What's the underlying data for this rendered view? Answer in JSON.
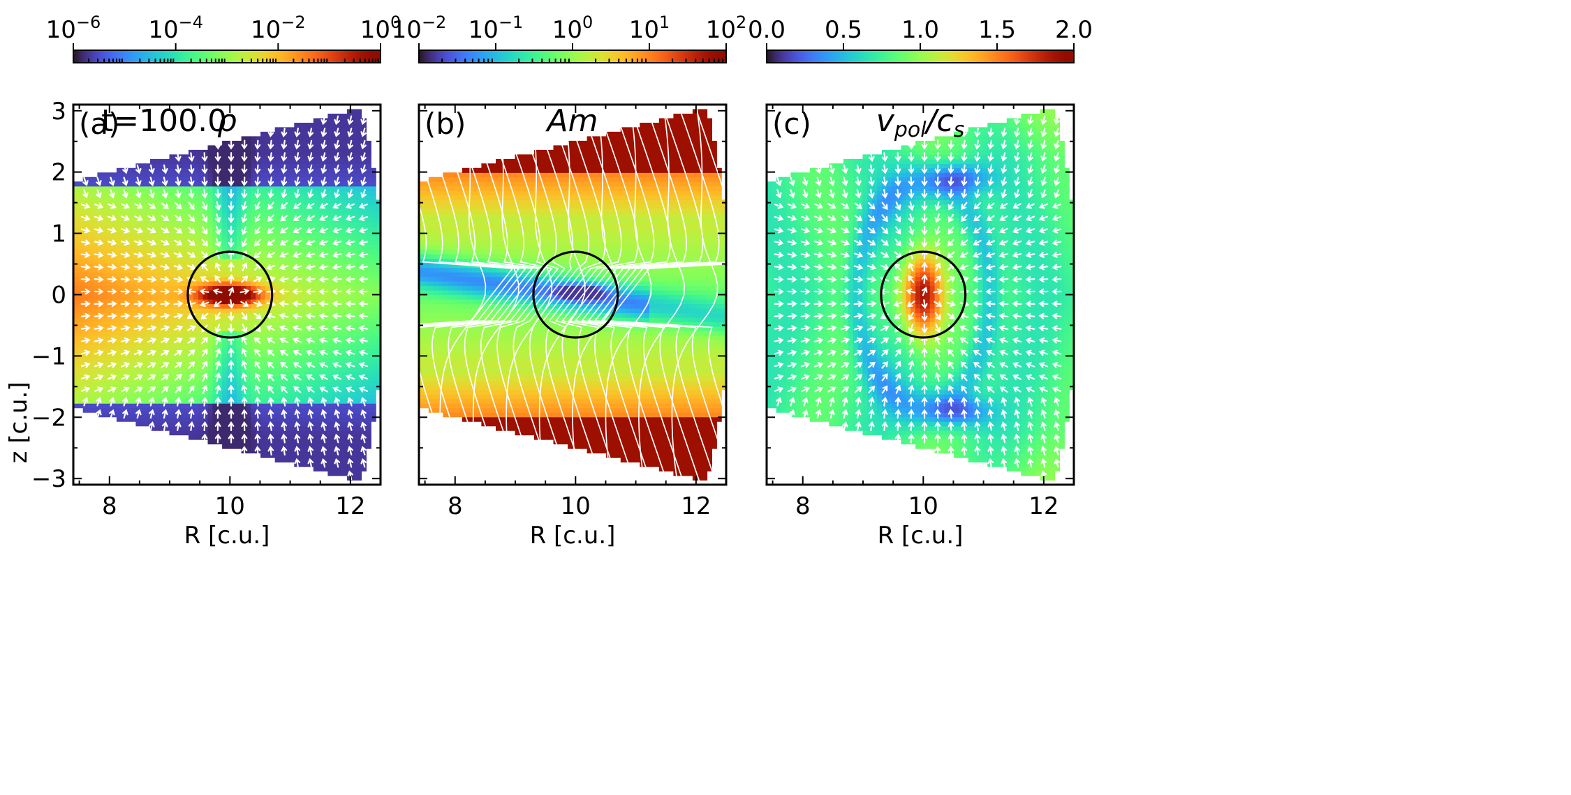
{
  "figure": {
    "time_label": "t=100.0",
    "x_label": "R [c.u.]",
    "y_label": "z [c.u.]"
  },
  "chart_data": [
    {
      "type": "heatmap",
      "panel_label": "(a)",
      "quantity": "ρ",
      "colorbar": {
        "scale": "log",
        "min": 1e-06,
        "max": 1,
        "tick_values": [
          1e-06,
          0.0001,
          0.01,
          1
        ],
        "tick_base": [
          "10",
          "10",
          "10",
          "10"
        ],
        "tick_exp": [
          "−6",
          "−4",
          "−2",
          "0"
        ],
        "colormap": "turbo"
      },
      "x_range": [
        7.4,
        12.5
      ],
      "y_range": [
        -3.1,
        3.1
      ],
      "x_ticks": [
        8,
        10,
        12
      ],
      "x_tick_labels": [
        "8",
        "10",
        "12"
      ],
      "y_ticks": [
        -3,
        -2,
        -1,
        0,
        1,
        2,
        3
      ],
      "y_tick_labels": [
        "−3",
        "−2",
        "−1",
        "0",
        "1",
        "2",
        "3"
      ],
      "circle": {
        "center": [
          10,
          0
        ],
        "radius": 0.7
      },
      "overlay": "velocity arrows"
    },
    {
      "type": "heatmap",
      "panel_label": "(b)",
      "quantity": "Am",
      "colorbar": {
        "scale": "log",
        "min": 0.01,
        "max": 100,
        "tick_values": [
          0.01,
          0.1,
          1,
          10,
          100
        ],
        "tick_base": [
          "10",
          "10",
          "10",
          "10",
          "10"
        ],
        "tick_exp": [
          "−2",
          "−1",
          "0",
          "1",
          "2"
        ],
        "colormap": "turbo"
      },
      "x_range": [
        7.4,
        12.5
      ],
      "y_range": [
        -3.1,
        3.1
      ],
      "x_ticks": [
        8,
        10,
        12
      ],
      "x_tick_labels": [
        "8",
        "10",
        "12"
      ],
      "y_ticks": [
        -3,
        -2,
        -1,
        0,
        1,
        2,
        3
      ],
      "circle": {
        "center": [
          10,
          0
        ],
        "radius": 0.7
      },
      "overlay": "magnetic field lines"
    },
    {
      "type": "heatmap",
      "panel_label": "(c)",
      "quantity": "v_pol/c_s",
      "quantity_main": "v",
      "quantity_sub1": "pol",
      "quantity_slash": "/",
      "quantity_main2": "c",
      "quantity_sub2": "s",
      "colorbar": {
        "scale": "linear",
        "min": 0.0,
        "max": 2.0,
        "tick_values": [
          0.0,
          0.5,
          1.0,
          1.5,
          2.0
        ],
        "tick_labels": [
          "0.0",
          "0.5",
          "1.0",
          "1.5",
          "2.0"
        ],
        "colormap": "turbo"
      },
      "x_range": [
        7.4,
        12.5
      ],
      "y_range": [
        -3.1,
        3.1
      ],
      "x_ticks": [
        8,
        10,
        12
      ],
      "x_tick_labels": [
        "8",
        "10",
        "12"
      ],
      "y_ticks": [
        -3,
        -2,
        -1,
        0,
        1,
        2,
        3
      ],
      "circle": {
        "center": [
          10,
          0
        ],
        "radius": 0.7
      },
      "overlay": "velocity arrows"
    }
  ]
}
